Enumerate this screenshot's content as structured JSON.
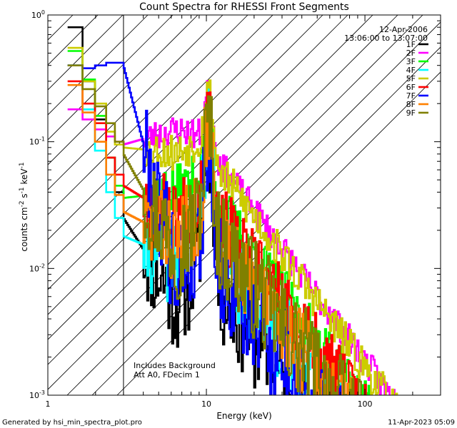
{
  "chart_data": {
    "type": "line",
    "title": "Count Spectra for RHESSI Front Segments",
    "xlabel": "Energy (keV)",
    "ylabel_parts": {
      "base": "counts cm",
      "exp1": "-2",
      "mid1": " s",
      "exp2": "-1",
      "mid2": " keV",
      "exp3": "-1"
    },
    "xscale": "log",
    "yscale": "log",
    "xlim": [
      1.0,
      300.0
    ],
    "ylim": [
      0.001,
      1.0
    ],
    "x_ticks": [
      {
        "value": 1,
        "label": "1"
      },
      {
        "value": 10,
        "label": "10"
      },
      {
        "value": 100,
        "label": "100"
      }
    ],
    "y_ticks": [
      {
        "value": 1.0,
        "base": "10",
        "exp": "0"
      },
      {
        "value": 0.1,
        "base": "10",
        "exp": "-1"
      },
      {
        "value": 0.01,
        "base": "10",
        "exp": "-2"
      },
      {
        "value": 0.001,
        "base": "10",
        "exp": "-3"
      }
    ],
    "shaded_region": {
      "x_from": 1.0,
      "x_to": 3.0,
      "pattern": "diagonal hatch"
    },
    "legend_header": [
      "12-Apr-2006",
      "13:06:00 to 13:07:00"
    ],
    "annotations": [
      "Includes Background",
      "Att A0, FDecim 1"
    ],
    "series": [
      {
        "name": "1F",
        "color": "#000000",
        "seed": 11,
        "low": [
          0.8,
          0.3,
          0.15,
          0.075,
          0.04,
          0.025
        ],
        "s1": 0.0055,
        "s2": 0.011,
        "pk": 0.095,
        "jit": 0.95
      },
      {
        "name": "2F",
        "color": "#ff00ff",
        "seed": 23,
        "low": [
          0.18,
          0.15,
          0.125,
          0.11,
          0.1,
          0.095
        ],
        "s1": 0.125,
        "s2": 0.112,
        "pk": 0.15,
        "jit": 0.28
      },
      {
        "name": "3F",
        "color": "#00ff00",
        "seed": 37,
        "low": [
          0.52,
          0.31,
          0.16,
          0.075,
          0.045,
          0.036
        ],
        "s1": 0.04,
        "s2": 0.05,
        "pk": 0.13,
        "jit": 0.5
      },
      {
        "name": "4F",
        "color": "#00ffff",
        "seed": 41,
        "low": [
          0.4,
          0.18,
          0.085,
          0.04,
          0.025,
          0.018
        ],
        "s1": 0.012,
        "s2": 0.022,
        "pk": 0.1,
        "jit": 0.85
      },
      {
        "name": "5F",
        "color": "#cccc00",
        "seed": 53,
        "low": [
          0.55,
          0.3,
          0.2,
          0.12,
          0.095,
          0.09
        ],
        "s1": 0.082,
        "s2": 0.1,
        "pk": 0.175,
        "jit": 0.35
      },
      {
        "name": "6F",
        "color": "#ff0000",
        "seed": 67,
        "low": [
          0.3,
          0.2,
          0.14,
          0.075,
          0.055,
          0.045
        ],
        "s1": 0.025,
        "s2": 0.04,
        "pk": 0.14,
        "jit": 0.7
      },
      {
        "name": "7F",
        "color": "#0000ff",
        "seed": 79,
        "low": [
          0.4,
          0.38,
          0.4,
          0.42,
          0.42,
          0.4
        ],
        "s1": 0.009,
        "s2": 0.015,
        "pk": 0.085,
        "jit": 1.0
      },
      {
        "name": "8F",
        "color": "#ff8000",
        "seed": 83,
        "low": [
          0.28,
          0.17,
          0.1,
          0.055,
          0.038,
          0.028
        ],
        "s1": 0.017,
        "s2": 0.028,
        "pk": 0.12,
        "jit": 0.8
      },
      {
        "name": "9F",
        "color": "#808000",
        "seed": 97,
        "low": [
          0.4,
          0.26,
          0.19,
          0.14,
          0.1,
          0.08
        ],
        "s1": 0.014,
        "s2": 0.027,
        "pk": 0.11,
        "jit": 0.95
      }
    ]
  },
  "footer": {
    "left": "Generated by hsi_min_spectra_plot.pro",
    "right": "11-Apr-2023 05:09"
  }
}
